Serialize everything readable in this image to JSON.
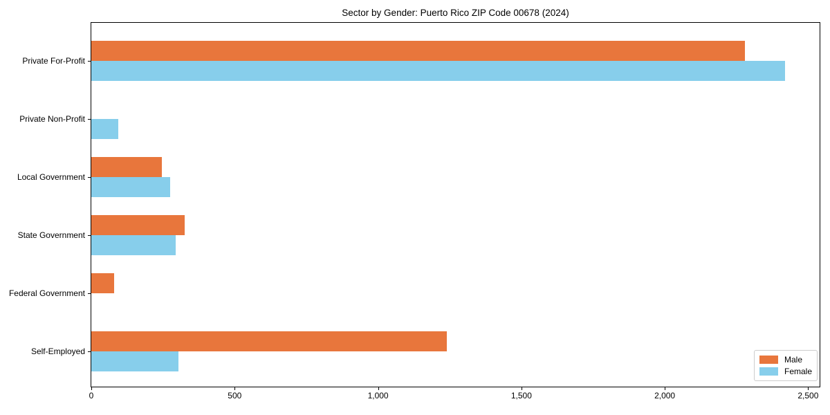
{
  "chart_data": {
    "type": "bar",
    "orientation": "horizontal",
    "title": "Sector by Gender: Puerto Rico ZIP Code 00678 (2024)",
    "categories": [
      "Private For-Profit",
      "Private Non-Profit",
      "Local Government",
      "State Government",
      "Federal Government",
      "Self-Employed"
    ],
    "series": [
      {
        "name": "Male",
        "color": "#E8763C",
        "values": [
          2280,
          0,
          245,
          325,
          80,
          1240
        ]
      },
      {
        "name": "Female",
        "color": "#87CEEB",
        "values": [
          2420,
          95,
          275,
          295,
          0,
          305
        ]
      }
    ],
    "xlabel": "",
    "ylabel": "",
    "xlim": [
      0,
      2540
    ],
    "x_ticks": [
      0,
      500,
      1000,
      1500,
      2000,
      2500
    ],
    "x_tick_labels": [
      "0",
      "500",
      "1,000",
      "1,500",
      "2,000",
      "2,500"
    ],
    "grid": false,
    "legend": {
      "position": "lower right"
    }
  }
}
